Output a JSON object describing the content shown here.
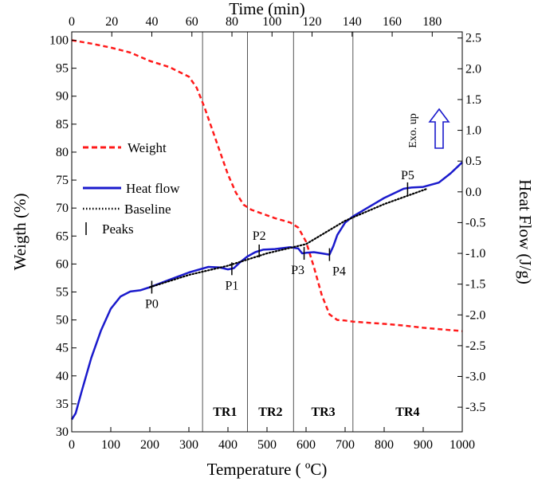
{
  "chart_data": {
    "type": "line",
    "title": "",
    "top_axis": {
      "label": "Time (min)",
      "range": [
        0,
        195
      ],
      "ticks": [
        0,
        20,
        40,
        60,
        80,
        100,
        120,
        140,
        160,
        180
      ]
    },
    "x_axis": {
      "label": "Temperature ( ºC)",
      "range": [
        0,
        1000
      ],
      "ticks": [
        0,
        100,
        200,
        300,
        400,
        500,
        600,
        700,
        800,
        900,
        1000
      ]
    },
    "y_left": {
      "label": "Weigth (%)",
      "range": [
        30,
        101.5
      ],
      "ticks": [
        30,
        35,
        40,
        45,
        50,
        55,
        60,
        65,
        70,
        75,
        80,
        85,
        90,
        95,
        100
      ]
    },
    "y_right": {
      "label": "Heat Flow (J/g)",
      "range": [
        -3.9,
        2.6
      ],
      "ticks": [
        2.5,
        2.0,
        1.5,
        1.0,
        0.5,
        0.0,
        -0.5,
        -1.0,
        -1.5,
        -2.0,
        -2.5,
        -3.0,
        -3.5
      ],
      "tick_labels": [
        "2.5",
        "2.0",
        "1.5",
        "1.0",
        "0.5",
        "0.0",
        "-0.5",
        "-1.0",
        "-1.5",
        "-2.0",
        "-2.5",
        "-3.0",
        "-3.5"
      ]
    },
    "grid": false,
    "legend": {
      "placement": "left",
      "items": [
        {
          "label": "Weight",
          "color": "#ff1a1a",
          "style": "dashed"
        },
        {
          "label": "Heat flow",
          "color": "#1a1acc",
          "style": "solid"
        },
        {
          "label": "Baseline",
          "color": "#000000",
          "style": "dotted"
        },
        {
          "label": "Peaks",
          "color": "#000000",
          "style": "tick"
        }
      ]
    },
    "annotation": {
      "text": "Exo. up",
      "color": "#1a1acc"
    },
    "regions": [
      {
        "label": "TR1",
        "from": 335,
        "to": 450
      },
      {
        "label": "TR2",
        "from": 450,
        "to": 568
      },
      {
        "label": "TR3",
        "from": 568,
        "to": 720
      },
      {
        "label": "TR4",
        "from": 720,
        "to": 1000
      }
    ],
    "boundaries": [
      335,
      450,
      568,
      720
    ],
    "series": [
      {
        "name": "Weight",
        "axis": "left",
        "color": "#ff1a1a",
        "style": "dashed",
        "x": [
          0,
          50,
          100,
          150,
          200,
          250,
          300,
          320,
          340,
          360,
          380,
          400,
          420,
          440,
          460,
          480,
          500,
          520,
          540,
          560,
          580,
          600,
          620,
          640,
          660,
          680,
          700,
          720,
          760,
          800,
          850,
          900,
          950,
          1000
        ],
        "y": [
          100,
          99.4,
          98.7,
          97.8,
          96.3,
          95.2,
          93.5,
          91.5,
          88.0,
          84.0,
          80.0,
          76.0,
          72.8,
          70.6,
          69.7,
          69.2,
          68.7,
          68.2,
          67.8,
          67.4,
          66.5,
          64.0,
          59.5,
          54.5,
          51.0,
          50.0,
          49.9,
          49.7,
          49.5,
          49.3,
          49.0,
          48.6,
          48.3,
          48.0
        ]
      },
      {
        "name": "Heat flow",
        "axis": "right",
        "color": "#1a1acc",
        "style": "solid",
        "x": [
          0,
          10,
          25,
          50,
          75,
          100,
          125,
          150,
          175,
          200,
          250,
          300,
          350,
          380,
          400,
          415,
          430,
          450,
          470,
          490,
          520,
          560,
          580,
          590,
          600,
          620,
          640,
          660,
          670,
          680,
          700,
          720,
          760,
          800,
          850,
          870,
          900,
          940,
          970,
          1000
        ],
        "y": [
          -3.7,
          -3.6,
          -3.25,
          -2.7,
          -2.25,
          -1.9,
          -1.7,
          -1.62,
          -1.6,
          -1.55,
          -1.43,
          -1.31,
          -1.22,
          -1.23,
          -1.26,
          -1.24,
          -1.15,
          -1.05,
          -0.98,
          -0.94,
          -0.93,
          -0.9,
          -0.92,
          -1.0,
          -0.99,
          -0.98,
          -1.0,
          -1.02,
          -0.88,
          -0.7,
          -0.5,
          -0.4,
          -0.25,
          -0.1,
          0.05,
          0.07,
          0.08,
          0.15,
          0.3,
          0.48
        ]
      },
      {
        "name": "Baseline",
        "axis": "right",
        "color": "#000000",
        "style": "dotted",
        "x": [
          200,
          300,
          400,
          500,
          600,
          700,
          800,
          910
        ],
        "y": [
          -1.55,
          -1.35,
          -1.2,
          -1.0,
          -0.85,
          -0.47,
          -0.2,
          0.05
        ]
      }
    ],
    "peaks": [
      {
        "label": "P0",
        "x": 205,
        "y": -1.55
      },
      {
        "label": "P1",
        "x": 410,
        "y": -1.25
      },
      {
        "label": "P2",
        "x": 480,
        "y": -0.96
      },
      {
        "label": "P3",
        "x": 595,
        "y": -1.0
      },
      {
        "label": "P4",
        "x": 660,
        "y": -1.02
      },
      {
        "label": "P5",
        "x": 860,
        "y": 0.05
      }
    ]
  }
}
